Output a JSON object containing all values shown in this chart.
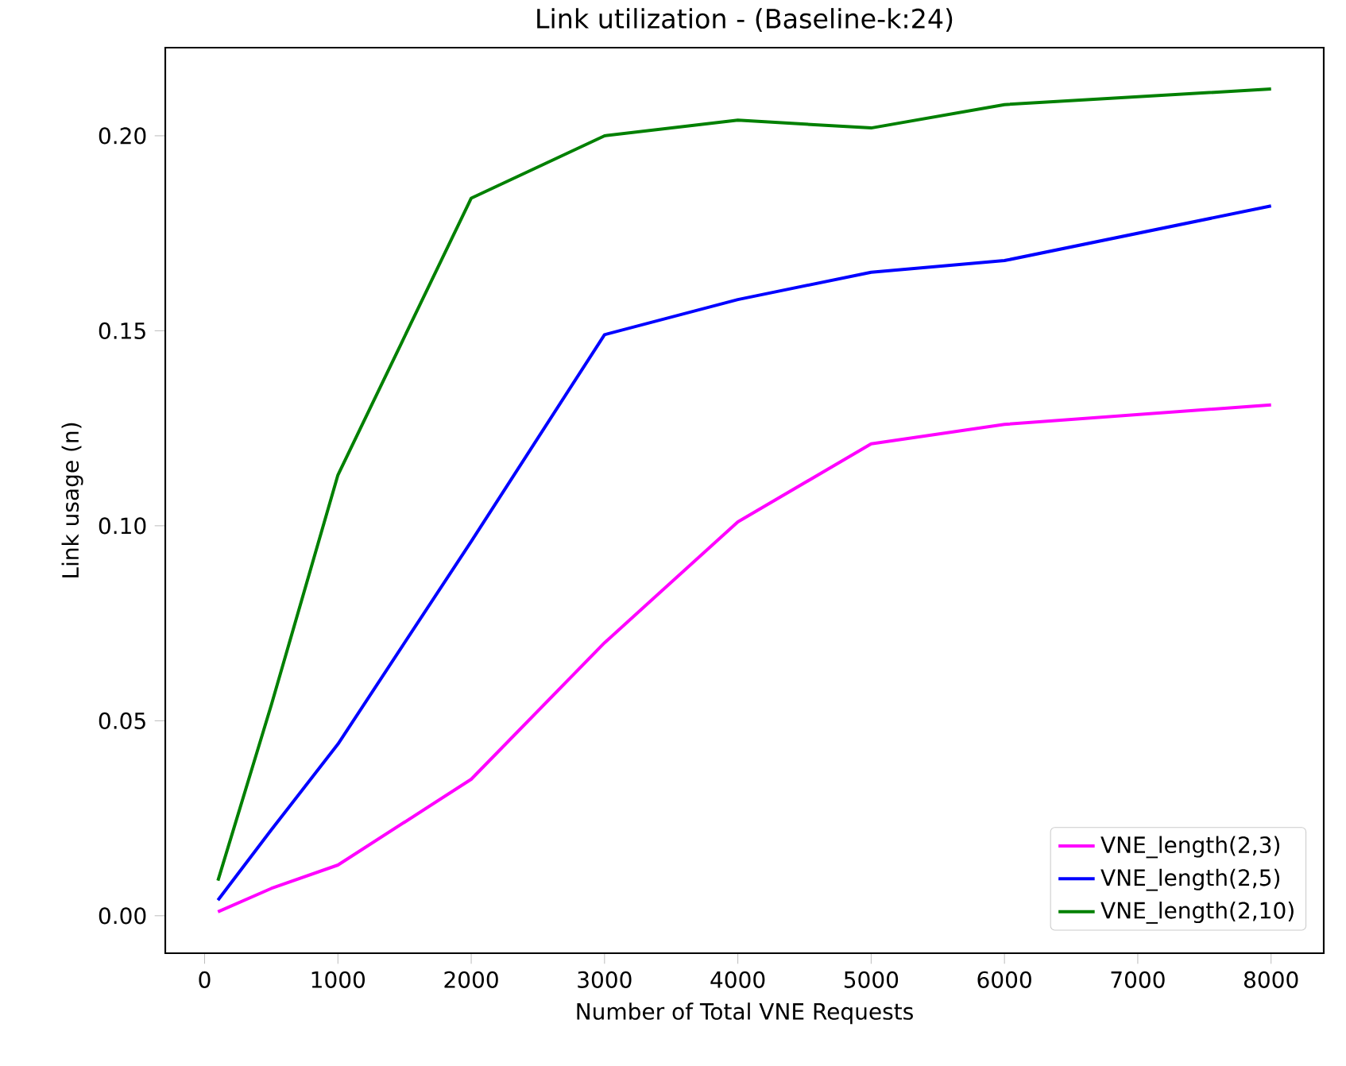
{
  "chart_data": {
    "type": "line",
    "title": "Link utilization - (Baseline-k:24)",
    "xlabel": "Number of Total VNE Requests",
    "ylabel": "Link usage (n)",
    "x": [
      100,
      500,
      1000,
      2000,
      3000,
      4000,
      5000,
      6000,
      8000
    ],
    "series": [
      {
        "name": "VNE_length(2,3)",
        "color": "#ff00ff",
        "values": [
          0.001,
          0.007,
          0.013,
          0.035,
          0.07,
          0.101,
          0.121,
          0.126,
          0.131
        ]
      },
      {
        "name": "VNE_length(2,5)",
        "color": "#0000ff",
        "values": [
          0.004,
          0.022,
          0.044,
          0.096,
          0.149,
          0.158,
          0.165,
          0.168,
          0.182
        ]
      },
      {
        "name": "VNE_length(2,10)",
        "color": "#008000",
        "values": [
          0.009,
          0.054,
          0.113,
          0.184,
          0.2,
          0.204,
          0.202,
          0.208,
          0.212
        ]
      }
    ],
    "xlim": [
      -295,
      8395
    ],
    "ylim": [
      -0.0096,
      0.2226
    ],
    "xticks": [
      0,
      1000,
      2000,
      3000,
      4000,
      5000,
      6000,
      7000,
      8000
    ],
    "yticks": [
      {
        "value": 0,
        "label": "0.00"
      },
      {
        "value": 0.05,
        "label": "0.05"
      },
      {
        "value": 0.1,
        "label": "0.10"
      },
      {
        "value": 0.15,
        "label": "0.15"
      },
      {
        "value": 0.2,
        "label": "0.20"
      }
    ],
    "grid": false,
    "legend": "bottom right",
    "marker": "none",
    "line_style": "solid"
  }
}
